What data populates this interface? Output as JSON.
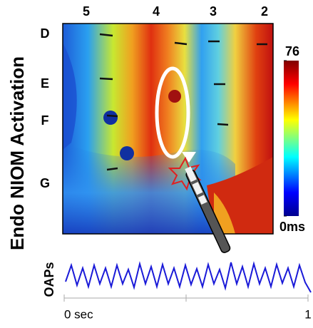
{
  "figure": {
    "title": "Endo NIOM Activation",
    "columns": [
      "5",
      "4",
      "3",
      "2"
    ],
    "rows": [
      "D",
      "E",
      "F",
      "G"
    ],
    "colorbar": {
      "lim": [
        0,
        76
      ],
      "ticks": [
        {
          "value": 0,
          "label": "0ms"
        },
        76
      ]
    },
    "trace": {
      "label": "OAPs",
      "xlim": [
        0,
        1
      ],
      "xticks": [
        {
          "value": 0,
          "label": "0 sec"
        },
        1
      ]
    }
  }
}
